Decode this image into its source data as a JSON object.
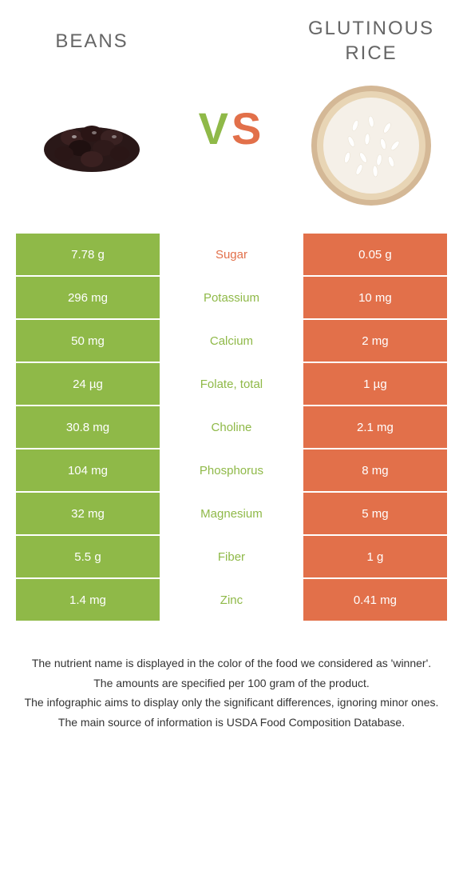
{
  "colors": {
    "left": "#8fb948",
    "right": "#e2704a",
    "background": "#ffffff"
  },
  "header": {
    "left_title": "BEANS",
    "right_title": "GLUTINOUS RICE",
    "vs_v": "V",
    "vs_s": "S"
  },
  "rows": [
    {
      "left": "7.78 g",
      "label": "Sugar",
      "right": "0.05 g",
      "winner": "right"
    },
    {
      "left": "296 mg",
      "label": "Potassium",
      "right": "10 mg",
      "winner": "left"
    },
    {
      "left": "50 mg",
      "label": "Calcium",
      "right": "2 mg",
      "winner": "left"
    },
    {
      "left": "24 µg",
      "label": "Folate, total",
      "right": "1 µg",
      "winner": "left"
    },
    {
      "left": "30.8 mg",
      "label": "Choline",
      "right": "2.1 mg",
      "winner": "left"
    },
    {
      "left": "104 mg",
      "label": "Phosphorus",
      "right": "8 mg",
      "winner": "left"
    },
    {
      "left": "32 mg",
      "label": "Magnesium",
      "right": "5 mg",
      "winner": "left"
    },
    {
      "left": "5.5 g",
      "label": "Fiber",
      "right": "1 g",
      "winner": "left"
    },
    {
      "left": "1.4 mg",
      "label": "Zinc",
      "right": "0.41 mg",
      "winner": "left"
    }
  ],
  "footnotes": [
    "The nutrient name is displayed in the color of the food we considered as 'winner'.",
    "The amounts are specified per 100 gram of the product.",
    "The infographic aims to display only the significant differences, ignoring minor ones.",
    "The main source of information is USDA Food Composition Database."
  ]
}
